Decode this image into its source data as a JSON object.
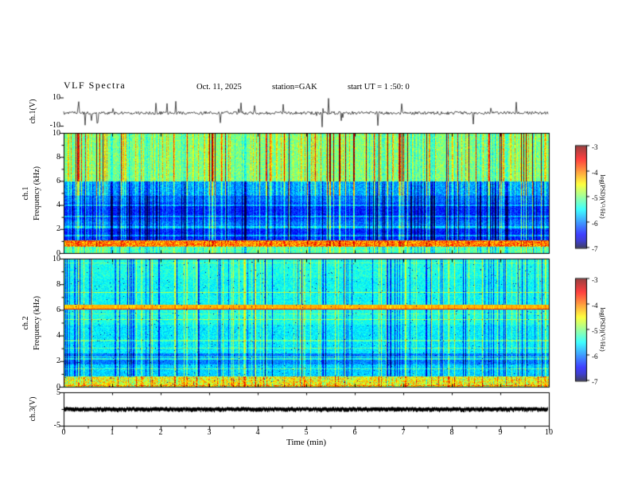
{
  "header": {
    "title": "VLF Spectra",
    "date": "Oct. 11, 2025",
    "station": "station=GAK",
    "start_ut": "start UT =  1 :50: 0"
  },
  "axes": {
    "x": {
      "label": "Time  (min)",
      "ticks": [
        "0",
        "1",
        "2",
        "3",
        "4",
        "5",
        "6",
        "7",
        "8",
        "9",
        "10"
      ]
    },
    "waveform_y": {
      "channel": "ch.1(V)",
      "ticks": [
        "10",
        "-10"
      ]
    },
    "spec1_y": {
      "channel": "ch.1",
      "label": "Frequency  (kHz)",
      "ticks": [
        "0",
        "2",
        "4",
        "6",
        "8",
        "10"
      ]
    },
    "spec2_y": {
      "channel": "ch.2",
      "label": "Frequency  (kHz)",
      "ticks": [
        "0",
        "2",
        "4",
        "6",
        "8",
        "10"
      ]
    },
    "ch3_y": {
      "channel": "ch.3(V)",
      "ticks": [
        "5",
        "-5"
      ]
    }
  },
  "colorbars": [
    {
      "label": "log(PSD)(V²/Hz)",
      "ticks": [
        "-3",
        "-4",
        "-5",
        "-6",
        "-7"
      ]
    },
    {
      "label": "log(PSD)(V²/Hz)",
      "ticks": [
        "-3",
        "-4",
        "-5",
        "-6",
        "-7"
      ]
    }
  ],
  "chart_data": [
    {
      "type": "line",
      "name": "ch.1 voltage waveform",
      "xlabel": "Time (min)",
      "ylabel": "ch.1(V)",
      "xlim": [
        0,
        10
      ],
      "ylim": [
        -10,
        10
      ],
      "baseline_v": 0,
      "description": "Dense noisy trace near 0 V with many impulsive vertical spikes (sferics) reaching toward +/-10 V across the full 10-minute record."
    },
    {
      "type": "heatmap",
      "name": "ch.1 VLF spectrogram",
      "xlabel": "Time (min)",
      "ylabel": "Frequency (kHz)",
      "zlabel": "log(PSD)(V²/Hz)",
      "xlim": [
        0,
        10
      ],
      "ylim": [
        0,
        10
      ],
      "zlim": [
        -7,
        -3
      ],
      "colormap": "jet",
      "bands": [
        {
          "freq_khz": [
            6,
            10
          ],
          "level_log_psd": -4.5,
          "appearance": "green-yellow background with dense red/orange vertical sferic streaks"
        },
        {
          "freq_khz": [
            4.8,
            6
          ],
          "level_log_psd": -6,
          "appearance": "blue transition band"
        },
        {
          "freq_khz": [
            1,
            4.8
          ],
          "level_log_psd": -6.5,
          "appearance": "dark blue/black with brighter horizontal lines near 1.5, 2.1, 3.0 and 4.0 kHz and vertical streaks"
        },
        {
          "freq_khz": [
            0.5,
            1
          ],
          "level_log_psd": -3.8,
          "appearance": "bright yellow-orange-red band (hum/power-line lines)"
        },
        {
          "freq_khz": [
            0,
            0.5
          ],
          "level_log_psd": -5,
          "appearance": "green-cyan strip"
        }
      ]
    },
    {
      "type": "heatmap",
      "name": "ch.2 VLF spectrogram",
      "xlabel": "Time (min)",
      "ylabel": "Frequency (kHz)",
      "zlabel": "log(PSD)(V²/Hz)",
      "xlim": [
        0,
        10
      ],
      "ylim": [
        0,
        10
      ],
      "zlim": [
        -7,
        -3
      ],
      "colormap": "jet",
      "bands": [
        {
          "freq_khz": [
            8.5,
            10
          ],
          "level_log_psd": -5,
          "appearance": "green-cyan with blue vertical streaks"
        },
        {
          "freq_khz": [
            6.05,
            6.45
          ],
          "level_log_psd": -3.8,
          "appearance": "distinct continuous yellow-orange horizontal line near 6.2 kHz"
        },
        {
          "freq_khz": [
            2.7,
            6
          ],
          "level_log_psd": -5.2,
          "appearance": "cyan with thin brighter horizontal lines and dark vertical streaks"
        },
        {
          "freq_khz": [
            1.75,
            2.7
          ],
          "level_log_psd": -6,
          "appearance": "darker blue band"
        },
        {
          "freq_khz": [
            0,
            0.8
          ],
          "level_log_psd": -4.5,
          "appearance": "bright green-yellow speckled strip"
        }
      ]
    },
    {
      "type": "line",
      "name": "ch.3 voltage",
      "xlabel": "Time (min)",
      "ylabel": "ch.3(V)",
      "xlim": [
        0,
        10
      ],
      "ylim": [
        -5,
        5
      ],
      "value": 0,
      "description": "Flat thick black trace at ~0 V for the entire record."
    }
  ]
}
